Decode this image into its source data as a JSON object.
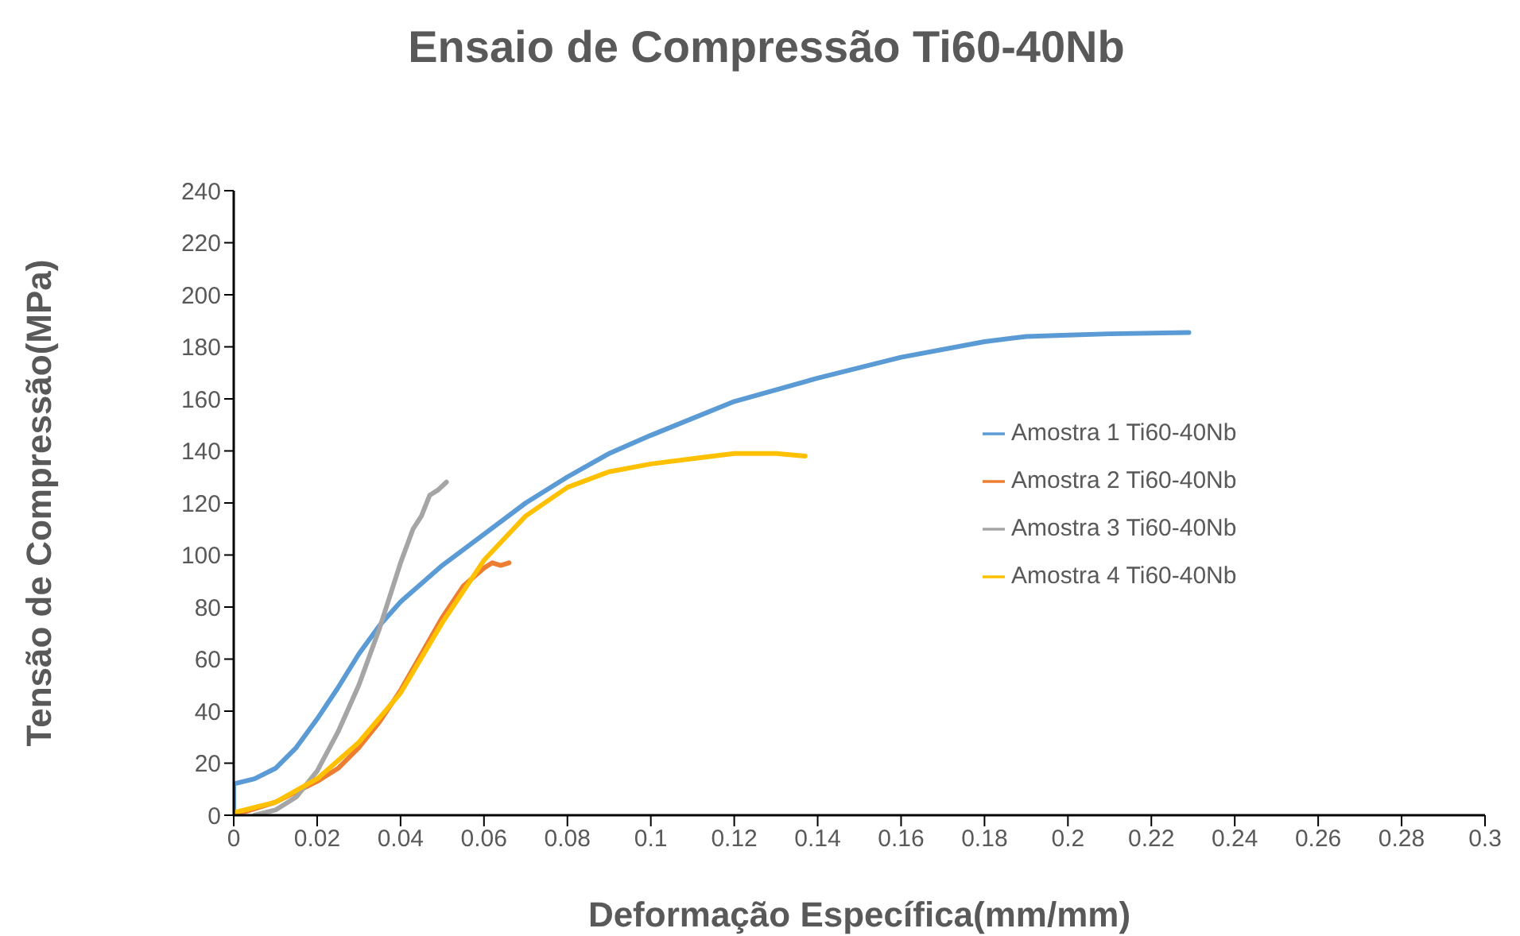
{
  "chart_data": {
    "type": "line",
    "title": "Ensaio de Compressão Ti60-40Nb",
    "xlabel": "Deformação Específica(mm/mm)",
    "ylabel": "Tensão de Compressão(MPa)",
    "xlim": [
      0,
      0.3
    ],
    "xticks": [
      0,
      0.02,
      0.04,
      0.06,
      0.08,
      0.1,
      0.12,
      0.14,
      0.16,
      0.18,
      0.2,
      0.22,
      0.24,
      0.26,
      0.28,
      0.3
    ],
    "ylim": [
      0,
      240
    ],
    "yticks": [
      0,
      20,
      40,
      60,
      80,
      100,
      120,
      140,
      160,
      180,
      200,
      220,
      240
    ],
    "grid": false,
    "legend": "right",
    "marker": "none",
    "line_style": "solid",
    "series": [
      {
        "name": "Amostra 1 Ti60-40Nb",
        "color": "#5b9bd5",
        "x": [
          0,
          0,
          0.005,
          0.01,
          0.015,
          0.02,
          0.025,
          0.03,
          0.035,
          0.04,
          0.045,
          0.05,
          0.06,
          0.07,
          0.08,
          0.09,
          0.1,
          0.12,
          0.14,
          0.16,
          0.18,
          0.19,
          0.2,
          0.21,
          0.229
        ],
        "values": [
          0,
          12,
          14,
          18,
          26,
          37,
          49,
          62,
          73,
          82,
          89,
          96,
          108,
          120,
          130,
          139,
          146,
          159,
          168,
          176,
          182,
          184,
          184.5,
          185,
          185.5
        ]
      },
      {
        "name": "Amostra 2 Ti60-40Nb",
        "color": "#ed7d31",
        "x": [
          0,
          0.01,
          0.02,
          0.025,
          0.03,
          0.035,
          0.04,
          0.045,
          0.05,
          0.055,
          0.06,
          0.062,
          0.064,
          0.066
        ],
        "values": [
          0,
          5,
          13,
          18,
          26,
          36,
          48,
          62,
          76,
          88,
          95,
          97,
          96,
          97
        ]
      },
      {
        "name": "Amostra 3 Ti60-40Nb",
        "color": "#a5a5a5",
        "x": [
          0.005,
          0.01,
          0.015,
          0.02,
          0.025,
          0.03,
          0.035,
          0.04,
          0.043,
          0.045,
          0.047,
          0.049,
          0.051
        ],
        "values": [
          0,
          2,
          7,
          17,
          32,
          50,
          72,
          97,
          110,
          115,
          123,
          125,
          128
        ]
      },
      {
        "name": "Amostra 4 Ti60-40Nb",
        "color": "#ffc000",
        "x": [
          0,
          0.01,
          0.02,
          0.03,
          0.04,
          0.05,
          0.06,
          0.07,
          0.08,
          0.09,
          0.1,
          0.11,
          0.12,
          0.13,
          0.137
        ],
        "values": [
          1,
          5,
          14,
          28,
          47,
          74,
          98,
          115,
          126,
          132,
          135,
          137,
          139,
          139,
          138
        ]
      }
    ]
  }
}
